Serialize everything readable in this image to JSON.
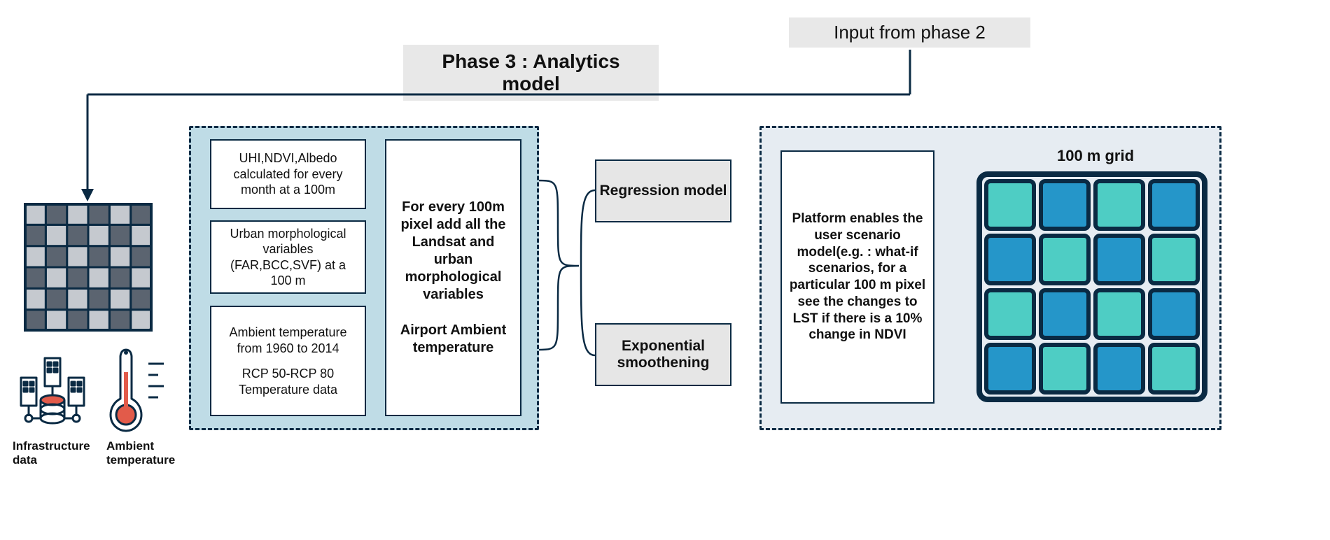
{
  "header": {
    "title": "Phase 3 : Analytics model",
    "input_label": "Input from phase 2"
  },
  "left_icons": {
    "infra_label": "Infrastructure data",
    "ambient_label": "Ambient temperature"
  },
  "panel_inputs": {
    "card1": "UHI,NDVI,Albedo calculated for every month at a 100m",
    "card2": "Urban morphological variables (FAR,BCC,SVF) at a 100 m",
    "card3_a": "Ambient temperature from 1960 to 2014",
    "card3_b": "RCP 50-RCP 80 Temperature data",
    "merge_a": "For every 100m pixel add all the Landsat and urban morphological variables",
    "merge_b": "Airport Ambient temperature"
  },
  "models": {
    "regression": "Regression model",
    "expo": "Exponential smoothening"
  },
  "platform": {
    "desc": "Platform enables the user scenario model(e.g. : what-if scenarios, for a particular 100 m pixel see the changes to LST if there is a 10% change in NDVI",
    "grid_title": "100 m grid"
  },
  "colors": {
    "navy": "#0a2a43",
    "panel_blue": "#bfdce6",
    "panel_light": "#e6ecf2",
    "grey": "#e6e6e6",
    "grid_teal": "#4ecdc4",
    "grid_blue": "#2596c9",
    "grid_border": "#0a2a43"
  },
  "grid_pattern": {
    "rows": 4,
    "cols": 4,
    "cells": [
      [
        "teal",
        "blue",
        "teal",
        "blue"
      ],
      [
        "blue",
        "teal",
        "blue",
        "teal"
      ],
      [
        "teal",
        "blue",
        "teal",
        "blue"
      ],
      [
        "blue",
        "teal",
        "blue",
        "teal"
      ]
    ]
  },
  "input_grid": {
    "rows": 6,
    "cols": 6,
    "dark": "#5b6470",
    "light": "#c5c9cf",
    "border": "#0a2a43"
  }
}
